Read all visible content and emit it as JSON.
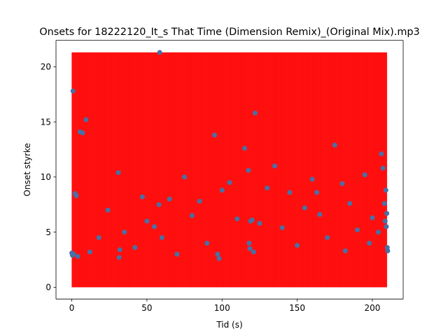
{
  "chart_data": {
    "type": "scatter",
    "title": "Onsets for 18222120_It_s That Time (Dimension Remix)_(Original Mix).mp3",
    "xlabel": "Tid (s)",
    "ylabel": "Onset styrke",
    "xlim": [
      -10.5,
      220.5
    ],
    "ylim": [
      -1.07,
      22.4
    ],
    "xticks": [
      0,
      50,
      100,
      150,
      200
    ],
    "yticks": [
      0,
      5,
      10,
      15,
      20
    ],
    "grid": false,
    "colors": {
      "points": "#4a6fa5",
      "vlines": "#ff0000",
      "axes": "#000000"
    },
    "vlines": {
      "ymin": 0,
      "ymax": 21.3,
      "x_start": 0.2,
      "x_end": 209.5,
      "step": 0.35
    },
    "points": [
      [
        0.0,
        3.1
      ],
      [
        0.4,
        2.9
      ],
      [
        0.8,
        17.8
      ],
      [
        1.2,
        3.0
      ],
      [
        2.2,
        8.5
      ],
      [
        3.0,
        8.3
      ],
      [
        4.0,
        2.8
      ],
      [
        5.5,
        14.1
      ],
      [
        7.2,
        14.0
      ],
      [
        9.5,
        15.2
      ],
      [
        12.0,
        3.2
      ],
      [
        18.0,
        4.5
      ],
      [
        24.0,
        7.0
      ],
      [
        31.0,
        10.4
      ],
      [
        31.5,
        2.7
      ],
      [
        32.0,
        3.4
      ],
      [
        35.0,
        5.0
      ],
      [
        42.0,
        3.6
      ],
      [
        47.0,
        8.2
      ],
      [
        50.0,
        6.0
      ],
      [
        55.0,
        5.5
      ],
      [
        58.0,
        7.5
      ],
      [
        58.5,
        21.3
      ],
      [
        60.0,
        4.5
      ],
      [
        65.0,
        8.0
      ],
      [
        70.0,
        3.0
      ],
      [
        75.0,
        10.0
      ],
      [
        80.0,
        6.5
      ],
      [
        85.0,
        7.8
      ],
      [
        90.0,
        4.0
      ],
      [
        95.0,
        13.8
      ],
      [
        97.0,
        3.0
      ],
      [
        98.0,
        2.6
      ],
      [
        100.0,
        8.8
      ],
      [
        105.0,
        9.5
      ],
      [
        110.0,
        6.2
      ],
      [
        115.0,
        12.6
      ],
      [
        117.5,
        10.6
      ],
      [
        118.0,
        4.0
      ],
      [
        118.5,
        3.5
      ],
      [
        119.0,
        6.0
      ],
      [
        120.0,
        6.1
      ],
      [
        121.0,
        3.2
      ],
      [
        122.0,
        15.8
      ],
      [
        125.0,
        5.8
      ],
      [
        130.0,
        9.0
      ],
      [
        135.0,
        11.0
      ],
      [
        140.0,
        5.4
      ],
      [
        145.0,
        8.6
      ],
      [
        150.0,
        3.8
      ],
      [
        155.0,
        7.2
      ],
      [
        160.0,
        9.8
      ],
      [
        163.0,
        8.6
      ],
      [
        165.0,
        6.6
      ],
      [
        170.0,
        4.5
      ],
      [
        175.0,
        12.9
      ],
      [
        180.0,
        9.4
      ],
      [
        182.0,
        3.3
      ],
      [
        185.0,
        7.6
      ],
      [
        190.0,
        5.2
      ],
      [
        195.0,
        10.2
      ],
      [
        198.0,
        4.0
      ],
      [
        200.0,
        6.3
      ],
      [
        204.0,
        5.0
      ],
      [
        206.0,
        12.1
      ],
      [
        207.0,
        10.8
      ],
      [
        208.0,
        7.6
      ],
      [
        208.5,
        6.0
      ],
      [
        209.0,
        8.8
      ],
      [
        209.3,
        5.5
      ],
      [
        209.6,
        6.7
      ],
      [
        209.9,
        3.6
      ],
      [
        210.2,
        3.3
      ]
    ]
  }
}
